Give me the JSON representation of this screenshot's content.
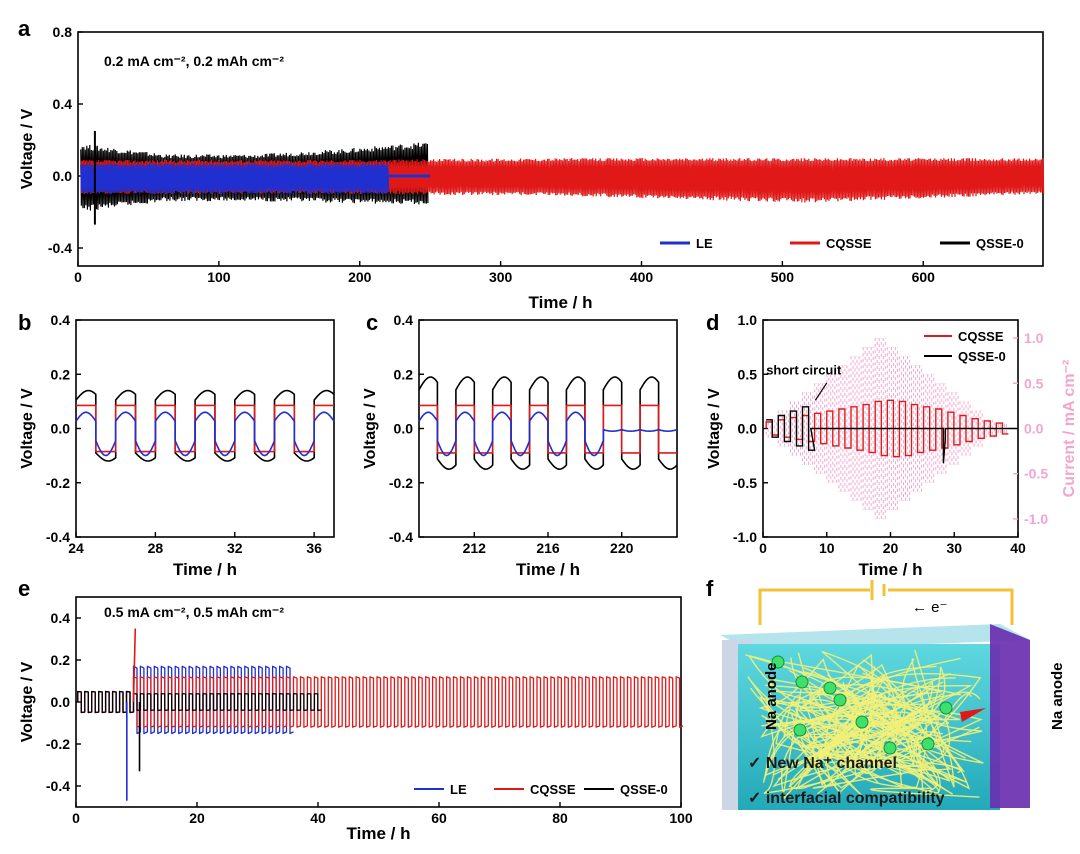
{
  "panels": {
    "a": "a",
    "b": "b",
    "c": "c",
    "d": "d",
    "e": "e",
    "f": "f"
  },
  "colors": {
    "le": "#1f2fd0",
    "cqsse": "#e01818",
    "qsse0": "#000000",
    "current": "#f2a6cf",
    "electrolyte": "#3fc7d2",
    "anode_right": "#6a2fb0",
    "polymer": "#f2f078",
    "ion": "#3ce06a",
    "wire": "#f0c23a"
  },
  "chart_data": [
    {
      "id": "a",
      "type": "line",
      "annotation": "0.2 mA cm⁻², 0.2 mAh cm⁻²",
      "xlabel": "Time / h",
      "ylabel": "Voltage / V",
      "xlim": [
        0,
        685
      ],
      "ylim": [
        -0.5,
        0.8
      ],
      "xticks": [
        0,
        100,
        200,
        300,
        400,
        500,
        600
      ],
      "yticks": [
        -0.4,
        0.0,
        0.4,
        0.8
      ],
      "ytick_labels": [
        "-0.4",
        "0.0",
        "0.4",
        "0.8"
      ],
      "legend": [
        "LE",
        "CQSSE",
        "QSSE-0"
      ],
      "series": [
        {
          "name": "QSSE-0",
          "color": "qsse0",
          "x_end": 248,
          "amplitude": [
            0.18,
            0.12,
            0.12,
            0.15,
            0.19
          ],
          "amplitude_low": [
            -0.2,
            -0.14,
            -0.14,
            -0.15,
            -0.16
          ]
        },
        {
          "name": "CQSSE",
          "color": "cqsse",
          "x_end": 685,
          "amplitude": [
            0.09,
            0.09,
            0.1,
            0.1,
            0.1
          ],
          "amplitude_low": [
            -0.1,
            -0.1,
            -0.11,
            -0.15,
            -0.1
          ]
        },
        {
          "name": "LE",
          "color": "le",
          "x_end": 220,
          "amplitude": [
            0.07,
            0.07,
            0.07
          ],
          "amplitude_low": [
            -0.1,
            -0.1,
            -0.1
          ],
          "tail_end": 250
        }
      ]
    },
    {
      "id": "b",
      "type": "line",
      "xlabel": "Time / h",
      "ylabel": "Voltage / V",
      "xlim": [
        24,
        37
      ],
      "ylim": [
        -0.4,
        0.4
      ],
      "xticks": [
        24,
        28,
        32,
        36
      ],
      "yticks": [
        -0.4,
        -0.2,
        0.0,
        0.2,
        0.4
      ],
      "ytick_labels": [
        "-0.4",
        "-0.2",
        "0.0",
        "0.2",
        "0.4"
      ],
      "cycle_period": 2,
      "series": [
        {
          "name": "QSSE-0",
          "color": "qsse0",
          "plateau": 0.14,
          "valley": -0.12
        },
        {
          "name": "CQSSE",
          "color": "cqsse",
          "plateau": 0.085,
          "valley": -0.085
        },
        {
          "name": "LE",
          "color": "le",
          "plateau": 0.06,
          "valley": -0.1
        }
      ]
    },
    {
      "id": "c",
      "type": "line",
      "xlabel": "Time / h",
      "ylabel": "Voltage / V",
      "xlim": [
        209,
        223
      ],
      "ylim": [
        -0.4,
        0.4
      ],
      "xticks": [
        212,
        216,
        220
      ],
      "yticks": [
        -0.4,
        -0.2,
        0.0,
        0.2,
        0.4
      ],
      "ytick_labels": [
        "-0.4",
        "-0.2",
        "0.0",
        "0.2",
        "0.4"
      ],
      "cycle_period": 2,
      "series": [
        {
          "name": "QSSE-0",
          "color": "qsse0",
          "plateau": 0.19,
          "valley": -0.15
        },
        {
          "name": "CQSSE",
          "color": "cqsse",
          "plateau": 0.085,
          "valley": -0.09
        },
        {
          "name": "LE",
          "color": "le",
          "plateau": 0.06,
          "valley": -0.1,
          "flat_after": 219,
          "flat_value": -0.01
        }
      ]
    },
    {
      "id": "d",
      "type": "line",
      "xlabel": "Time / h",
      "ylabel": "Voltage / V",
      "y2label": "Current / mA cm⁻²",
      "xlim": [
        0,
        40
      ],
      "ylim": [
        -1.0,
        1.0
      ],
      "y2lim": [
        -1.2,
        1.2
      ],
      "xticks": [
        0,
        10,
        20,
        30,
        40
      ],
      "yticks": [
        -1.0,
        -0.5,
        0.0,
        0.5,
        1.0
      ],
      "ytick_labels": [
        "-1.0",
        "-0.5",
        "0.0",
        "0.5",
        "1.0"
      ],
      "y2ticks": [
        -1.0,
        -0.5,
        0.0,
        0.5,
        1.0
      ],
      "y2tick_labels": [
        "-1.0",
        "-0.5",
        "0.0",
        "0.5",
        "1.0"
      ],
      "annotation": "short circuit",
      "legend": [
        "CQSSE",
        "QSSE-0"
      ],
      "current_steps": [
        0.1,
        0.2,
        0.3,
        0.4,
        0.5,
        0.6,
        0.7,
        0.8,
        0.9,
        1.0,
        0.9,
        0.8,
        0.7,
        0.6,
        0.5,
        0.4,
        0.3,
        0.2,
        0.1,
        0.05
      ],
      "series": [
        {
          "name": "CQSSE",
          "color": "cqsse",
          "step_amplitudes": [
            0.06,
            0.08,
            0.1,
            0.12,
            0.14,
            0.16,
            0.18,
            0.2,
            0.22,
            0.25,
            0.26,
            0.25,
            0.22,
            0.2,
            0.18,
            0.15,
            0.12,
            0.09,
            0.07,
            0.05
          ]
        },
        {
          "name": "QSSE-0",
          "color": "qsse0",
          "step_amplitudes": [
            0.08,
            0.12,
            0.16,
            0.2
          ],
          "short_at": 7.5,
          "spike_at": 28.3
        }
      ]
    },
    {
      "id": "e",
      "type": "line",
      "annotation": "0.5 mA cm⁻², 0.5 mAh cm⁻²",
      "xlabel": "Time / h",
      "ylabel": "Voltage / V",
      "xlim": [
        0,
        100
      ],
      "ylim": [
        -0.5,
        0.5
      ],
      "xticks": [
        0,
        20,
        40,
        60,
        80,
        100
      ],
      "yticks": [
        -0.4,
        -0.2,
        0.0,
        0.2,
        0.4
      ],
      "ytick_labels": [
        "-0.4",
        "-0.2",
        "0.0",
        "0.2",
        "0.4"
      ],
      "legend": [
        "LE",
        "CQSSE",
        "QSSE-0"
      ],
      "cycle_period": 1.0,
      "series": [
        {
          "name": "LE",
          "color": "le",
          "x_end": 35,
          "plateau": 0.17,
          "valley": -0.15,
          "spike_low": -0.47
        },
        {
          "name": "CQSSE",
          "color": "cqsse",
          "x_end": 100,
          "plateau": 0.12,
          "valley": -0.12,
          "spike_high": 0.35
        },
        {
          "name": "QSSE-0",
          "color": "qsse0",
          "x_end": 40,
          "plateau": 0.04,
          "valley": -0.04,
          "spike_low": -0.33
        }
      ]
    }
  ],
  "schematic": {
    "electron_label": "← e⁻",
    "left_anode": "Na anode",
    "right_anode": "Na anode",
    "check1": "✓ New Na⁺ channel",
    "check2": "✓ interfacial compatibility"
  }
}
